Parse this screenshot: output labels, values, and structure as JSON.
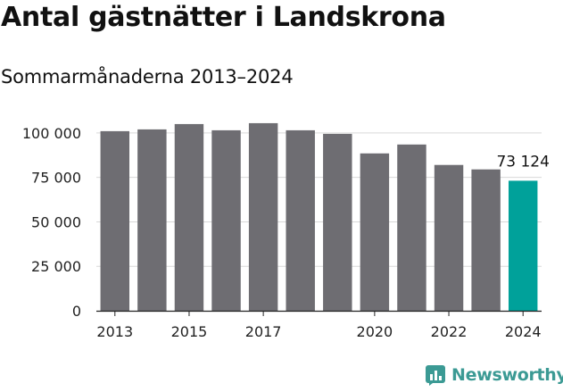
{
  "title": "Antal gästnätter i Landskrona",
  "subtitle": "Sommarmånaderna 2013–2024",
  "brand": {
    "name": "Newsworthy",
    "icon": "newsworthy-logo-icon",
    "color": "#3b9a94"
  },
  "colors": {
    "bar": "#6e6d72",
    "highlight": "#00a19a",
    "grid": "#d9d9d9",
    "axis": "#222222"
  },
  "chart_data": {
    "type": "bar",
    "categories": [
      "2013",
      "2014",
      "2015",
      "2016",
      "2017",
      "2018",
      "2019",
      "2020",
      "2021",
      "2022",
      "2023",
      "2024"
    ],
    "values": [
      101000,
      102000,
      105000,
      101500,
      105500,
      101500,
      99500,
      88500,
      93500,
      82000,
      79500,
      73124
    ],
    "highlight_index": 11,
    "x_tick_labels": [
      "2013",
      "2015",
      "2017",
      "2020",
      "2022",
      "2024"
    ],
    "y_ticks": [
      0,
      25000,
      50000,
      75000,
      100000
    ],
    "y_tick_labels": [
      "0",
      "25 000",
      "50 000",
      "75 000",
      "100 000"
    ],
    "ylim": [
      0,
      112000
    ],
    "annotation": {
      "category": "2024",
      "text": "73 124"
    },
    "title": "Antal gästnätter i Landskrona",
    "subtitle": "Sommarmånaderna 2013–2024",
    "xlabel": "",
    "ylabel": "",
    "grid": true,
    "legend": "none"
  }
}
